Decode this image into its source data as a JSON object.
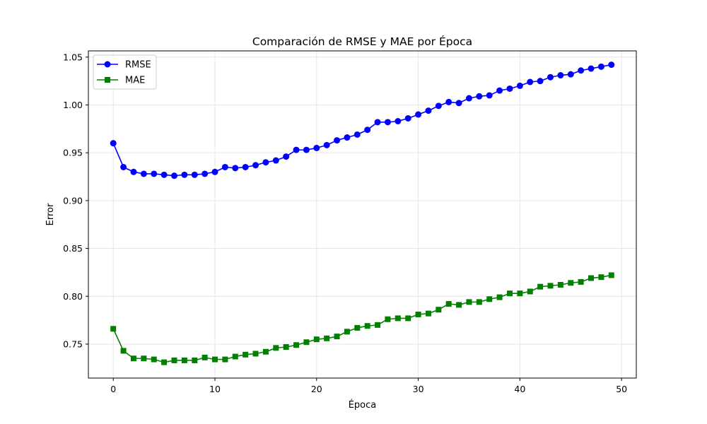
{
  "chart_data": {
    "type": "line",
    "title": "Comparación de RMSE y MAE por Época",
    "xlabel": "Época",
    "ylabel": "Error",
    "xlim": [
      -2.45,
      51.45
    ],
    "ylim": [
      0.7145,
      1.0565
    ],
    "x_ticks": [
      0,
      10,
      20,
      30,
      40,
      50
    ],
    "y_ticks": [
      0.75,
      0.8,
      0.85,
      0.9,
      0.95,
      1.0,
      1.05
    ],
    "grid": true,
    "legend_position": "top-left",
    "x": [
      0,
      1,
      2,
      3,
      4,
      5,
      6,
      7,
      8,
      9,
      10,
      11,
      12,
      13,
      14,
      15,
      16,
      17,
      18,
      19,
      20,
      21,
      22,
      23,
      24,
      25,
      26,
      27,
      28,
      29,
      30,
      31,
      32,
      33,
      34,
      35,
      36,
      37,
      38,
      39,
      40,
      41,
      42,
      43,
      44,
      45,
      46,
      47,
      48,
      49
    ],
    "series": [
      {
        "name": "RMSE",
        "color": "#0000ff",
        "marker": "circle",
        "values": [
          0.96,
          0.935,
          0.93,
          0.928,
          0.928,
          0.927,
          0.926,
          0.927,
          0.927,
          0.928,
          0.93,
          0.935,
          0.934,
          0.935,
          0.937,
          0.94,
          0.942,
          0.946,
          0.953,
          0.953,
          0.955,
          0.958,
          0.963,
          0.966,
          0.969,
          0.974,
          0.982,
          0.982,
          0.983,
          0.986,
          0.99,
          0.994,
          0.999,
          1.003,
          1.002,
          1.007,
          1.009,
          1.01,
          1.015,
          1.017,
          1.02,
          1.024,
          1.025,
          1.029,
          1.031,
          1.032,
          1.036,
          1.038,
          1.04,
          1.042
        ]
      },
      {
        "name": "MAE",
        "color": "#008000",
        "marker": "square",
        "values": [
          0.766,
          0.743,
          0.735,
          0.735,
          0.734,
          0.731,
          0.733,
          0.733,
          0.733,
          0.736,
          0.734,
          0.734,
          0.737,
          0.739,
          0.74,
          0.742,
          0.746,
          0.747,
          0.749,
          0.752,
          0.755,
          0.756,
          0.758,
          0.763,
          0.767,
          0.769,
          0.77,
          0.776,
          0.777,
          0.777,
          0.781,
          0.782,
          0.786,
          0.792,
          0.791,
          0.794,
          0.794,
          0.797,
          0.799,
          0.803,
          0.803,
          0.805,
          0.81,
          0.811,
          0.812,
          0.814,
          0.815,
          0.819,
          0.82,
          0.822
        ]
      }
    ]
  }
}
